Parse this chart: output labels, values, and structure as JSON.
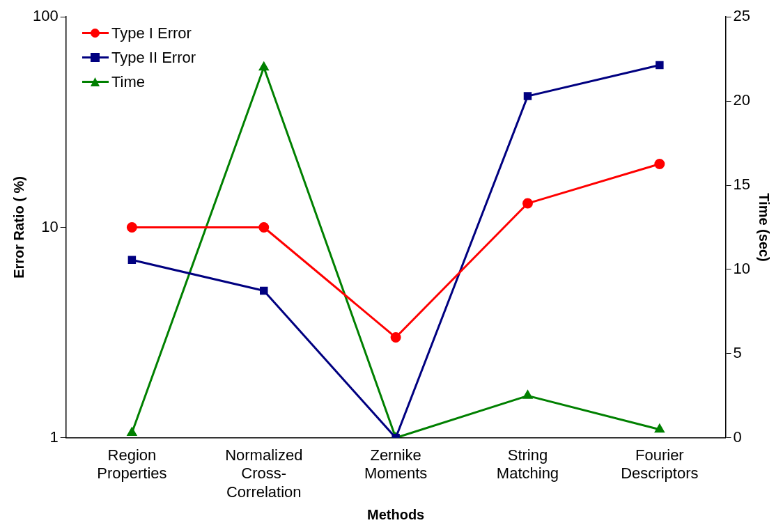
{
  "chart_data": {
    "type": "line",
    "xlabel": "Methods",
    "ylabel": "Error Ratio ( %)",
    "y2label": "Time (sec)",
    "categories": [
      "Region Properties",
      "Normalized Cross-Correlation",
      "Zernike Moments",
      "String Matching",
      "Fourier Descriptors"
    ],
    "series": [
      {
        "name": "Type I Error",
        "color": "#ff0000",
        "marker": "circle",
        "values": [
          10,
          10,
          3,
          13,
          20
        ]
      },
      {
        "name": "Type II Error",
        "color": "#000080",
        "marker": "square",
        "values": [
          7,
          5,
          1,
          42,
          59
        ]
      },
      {
        "name": "Time",
        "color": "#008000",
        "marker": "triangle",
        "axis": "y2",
        "values": [
          0.3,
          22,
          0,
          2.5,
          0.5
        ]
      }
    ],
    "log": "y",
    "ylim": [
      1,
      100
    ],
    "yticks": [
      1,
      10,
      100
    ],
    "y2lim": [
      0,
      25
    ],
    "y2ticks": [
      0,
      5,
      10,
      15,
      20,
      25
    ],
    "grid": false,
    "legend": "top left",
    "line_style": "solid"
  }
}
